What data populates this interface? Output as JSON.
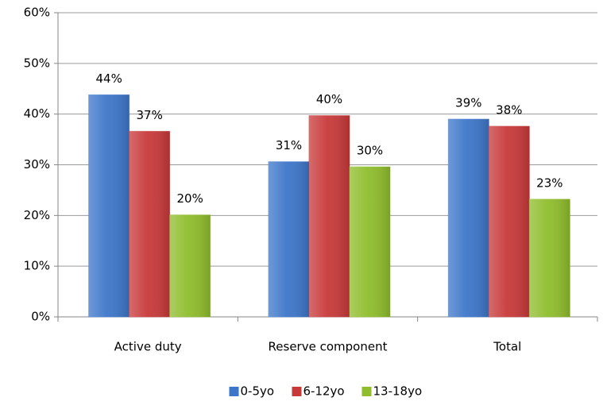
{
  "chart_data": {
    "type": "bar",
    "categories": [
      "Active duty",
      "Reserve component",
      "Total"
    ],
    "series": [
      {
        "name": "0-5yo",
        "color": "#3d76c9",
        "values": [
          43.8,
          30.6,
          39.0
        ],
        "value_labels": [
          "44%",
          "31%",
          "39%"
        ]
      },
      {
        "name": "6-12yo",
        "color": "#c8393a",
        "values": [
          36.6,
          39.7,
          37.6
        ],
        "value_labels": [
          "37%",
          "40%",
          "38%"
        ]
      },
      {
        "name": "13-18yo",
        "color": "#8fbd2c",
        "values": [
          20.1,
          29.6,
          23.2
        ],
        "value_labels": [
          "20%",
          "30%",
          "23%"
        ]
      }
    ],
    "ylim": [
      0,
      60
    ],
    "yticks": [
      {
        "value": 0,
        "label": "0%"
      },
      {
        "value": 10,
        "label": "10%"
      },
      {
        "value": 20,
        "label": "20%"
      },
      {
        "value": 30,
        "label": "30%"
      },
      {
        "value": 40,
        "label": "40%"
      },
      {
        "value": 50,
        "label": "50%"
      },
      {
        "value": 60,
        "label": "60%"
      }
    ],
    "grid": true,
    "legend": "bottom"
  }
}
